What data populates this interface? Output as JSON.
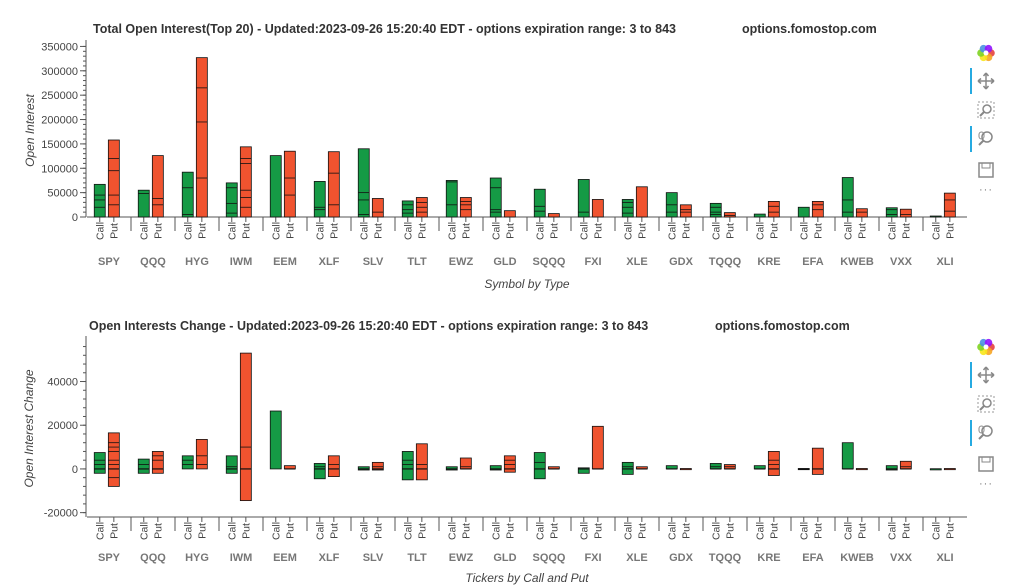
{
  "toolbar_tools": [
    "bokeh-logo",
    "pan-tool",
    "box-zoom-tool",
    "wheel-zoom-tool",
    "save-tool",
    "more"
  ],
  "colors": {
    "call": "#159A45",
    "put": "#F0532F",
    "edge": "#111111"
  },
  "subcategories": [
    "Call",
    "Put"
  ],
  "more_label": "···",
  "chart_data": [
    {
      "type": "bar",
      "title": "Total Open Interest(Top 20) - Updated:2023-09-26 15:20:40 EDT - options expiration range: 3 to 843",
      "site": "options.fomostop.com",
      "xlabel": "Symbol by Type",
      "ylabel": "Open Interest",
      "ylim": [
        0,
        355000
      ],
      "yticks": [
        0,
        50000,
        100000,
        150000,
        200000,
        250000,
        300000,
        350000
      ],
      "categories": [
        "SPY",
        "QQQ",
        "HYG",
        "IWM",
        "EEM",
        "XLF",
        "SLV",
        "TLT",
        "EWZ",
        "GLD",
        "SQQQ",
        "FXI",
        "XLE",
        "GDX",
        "TQQQ",
        "KRE",
        "EFA",
        "KWEB",
        "VXX",
        "XLI"
      ],
      "series": [
        {
          "name": "Call",
          "values": [
            67000,
            55000,
            92000,
            70000,
            126000,
            73000,
            140000,
            33000,
            75000,
            80000,
            57000,
            77000,
            36000,
            50000,
            28000,
            6000,
            20000,
            81000,
            19000,
            2000
          ],
          "segments": [
            [
              20000,
              35000,
              45000,
              67000
            ],
            [
              48000,
              55000
            ],
            [
              5000,
              60000,
              92000
            ],
            [
              8000,
              28000,
              60000,
              70000
            ],
            [
              126000
            ],
            [
              15000,
              20000,
              73000
            ],
            [
              5000,
              35000,
              50000,
              140000
            ],
            [
              8000,
              15000,
              25000,
              33000
            ],
            [
              25000,
              72000,
              75000
            ],
            [
              10000,
              15000,
              60000,
              80000
            ],
            [
              12000,
              22000,
              57000
            ],
            [
              10000,
              77000
            ],
            [
              8000,
              20000,
              30000,
              36000
            ],
            [
              10000,
              25000,
              50000
            ],
            [
              5000,
              10000,
              20000,
              28000
            ],
            [
              6000
            ],
            [
              20000
            ],
            [
              10000,
              35000,
              81000
            ],
            [
              5000,
              15000,
              19000
            ],
            [
              2000
            ]
          ]
        },
        {
          "name": "Put",
          "values": [
            158000,
            126000,
            327000,
            144000,
            135000,
            134000,
            38000,
            40000,
            40000,
            13000,
            7000,
            36000,
            62000,
            25000,
            9000,
            32000,
            32000,
            17000,
            16000,
            49000
          ],
          "segments": [
            [
              25000,
              45000,
              95000,
              120000,
              158000
            ],
            [
              25000,
              38000,
              126000
            ],
            [
              80000,
              195000,
              265000,
              327000
            ],
            [
              20000,
              40000,
              55000,
              110000,
              120000,
              144000
            ],
            [
              45000,
              80000,
              135000
            ],
            [
              25000,
              90000,
              134000
            ],
            [
              10000,
              38000
            ],
            [
              10000,
              20000,
              30000,
              40000
            ],
            [
              15000,
              25000,
              32000,
              40000
            ],
            [
              13000
            ],
            [
              7000
            ],
            [
              36000
            ],
            [
              62000
            ],
            [
              10000,
              15000,
              25000
            ],
            [
              3000,
              9000
            ],
            [
              10000,
              22000,
              32000
            ],
            [
              15000,
              25000,
              32000
            ],
            [
              10000,
              17000
            ],
            [
              5000,
              16000
            ],
            [
              12000,
              35000,
              49000
            ]
          ]
        }
      ]
    },
    {
      "type": "bar",
      "title": "Open Interests Change - Updated:2023-09-26 15:20:40 EDT - options expiration range: 3 to 843",
      "site": "options.fomostop.com",
      "xlabel": "Tickers by Call and Put",
      "ylabel": "Open Interest Change",
      "ylim": [
        -22000,
        59000
      ],
      "yticks": [
        -20000,
        0,
        20000,
        40000
      ],
      "categories": [
        "SPY",
        "QQQ",
        "HYG",
        "IWM",
        "EEM",
        "XLF",
        "SLV",
        "TLT",
        "EWZ",
        "GLD",
        "SQQQ",
        "FXI",
        "XLE",
        "GDX",
        "TQQQ",
        "KRE",
        "EFA",
        "KWEB",
        "VXX",
        "XLI"
      ],
      "series": [
        {
          "name": "Call",
          "ranges": [
            [
              -2000,
              7500
            ],
            [
              -2000,
              4500
            ],
            [
              0,
              6000
            ],
            [
              -2000,
              6000
            ],
            [
              0,
              26500
            ],
            [
              -4500,
              2500
            ],
            [
              -500,
              1000
            ],
            [
              -5000,
              8000
            ],
            [
              -500,
              1000
            ],
            [
              -500,
              1500
            ],
            [
              -4500,
              7500
            ],
            [
              -2000,
              500
            ],
            [
              -2500,
              3000
            ],
            [
              0,
              1500
            ],
            [
              0,
              2500
            ],
            [
              0,
              1500
            ],
            [
              -200,
              200
            ],
            [
              0,
              12000
            ],
            [
              -500,
              1500
            ],
            [
              -100,
              100
            ]
          ],
          "lines": [
            [
              0,
              2000,
              4000
            ],
            [
              0,
              2000
            ],
            [
              2000,
              4000
            ],
            [
              0,
              1000
            ],
            [],
            [
              0,
              1000
            ],
            [
              0
            ],
            [
              0,
              2000,
              4000
            ],
            [
              0
            ],
            [
              0
            ],
            [
              0,
              3000
            ],
            [
              0
            ],
            [
              0,
              1000
            ],
            [
              0
            ],
            [
              0,
              1000
            ],
            [
              0
            ],
            [
              0
            ],
            [
              0
            ],
            [
              0
            ],
            []
          ]
        },
        {
          "name": "Put",
          "ranges": [
            [
              -8000,
              16500
            ],
            [
              -2000,
              8000
            ],
            [
              0,
              13500
            ],
            [
              -14500,
              53000
            ],
            [
              0,
              1500
            ],
            [
              -3500,
              6000
            ],
            [
              -500,
              3000
            ],
            [
              -5000,
              11500
            ],
            [
              0,
              5000
            ],
            [
              -1500,
              6000
            ],
            [
              0,
              1000
            ],
            [
              0,
              19500
            ],
            [
              0,
              1000
            ],
            [
              -200,
              200
            ],
            [
              0,
              2000
            ],
            [
              -3000,
              8000
            ],
            [
              -2500,
              9500
            ],
            [
              -200,
              200
            ],
            [
              0,
              3500
            ],
            [
              -200,
              200
            ]
          ],
          "lines": [
            [
              -4000,
              0,
              2000,
              4000,
              8000,
              10000,
              12000
            ],
            [
              0,
              4000,
              6000
            ],
            [
              2000,
              6000
            ],
            [
              0,
              10000
            ],
            [
              0
            ],
            [
              0,
              2000
            ],
            [
              0,
              1000
            ],
            [
              0,
              2000
            ],
            [
              0,
              1000
            ],
            [
              0,
              2000,
              4000
            ],
            [
              0
            ],
            [
              0
            ],
            [
              0
            ],
            [],
            [
              0,
              1000
            ],
            [
              0,
              2000,
              4000
            ],
            [
              0
            ],
            [],
            [
              0,
              1000
            ],
            []
          ]
        }
      ]
    }
  ]
}
